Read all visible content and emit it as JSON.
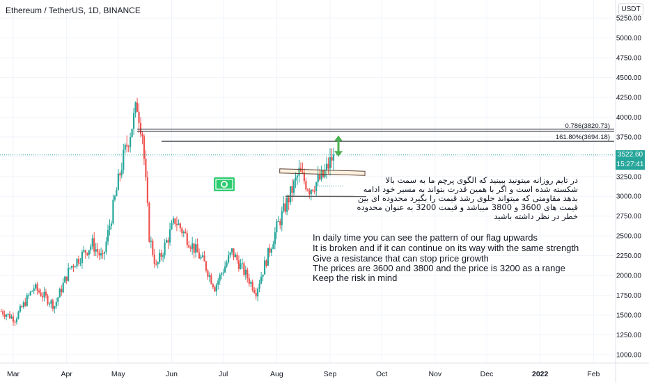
{
  "header": {
    "title": "Ethereum / TetherUS, 1D, BINANCE",
    "currency": "USDT"
  },
  "price_tags": {
    "price": "3522.60",
    "timer": "15:27:41"
  },
  "fib_labels": {
    "level_078": "0.786(3820.73)",
    "level_1618": "161.80%(3694.18)"
  },
  "annotation_fa": [
    "در تایم روزانه میتونید ببینید که الگوی پرچم ما به سمت بالا",
    "شکسته شده است و اگر با همین قدرت بتواند به مسیر خود ادامه",
    "بدهد مقاومتی که میتواند جلوی رشد قیمت را بگیرد محدوده ای بین",
    "قیمت های 3600 و 3800 میباشد و قیمت 3200 به عنوان محدوده",
    "خطر در نظر داشته باشید"
  ],
  "annotation_en": [
    "In daily time you can see the pattern of our flag upwards",
    "It is broken and if it can continue on its way with the same strength",
    "Give a resistance that can stop price growth",
    "The prices are 3600 and 3800 and the price is 3200 as a range",
    "Keep the risk in mind"
  ],
  "colors": {
    "up": "#26a69a",
    "down": "#ef5350",
    "grid": "#f0f3fa",
    "axis_text": "#131722",
    "money_icon": "#2ecc71",
    "arrow": "#4caf50"
  },
  "chart_data": {
    "type": "candlestick",
    "x_tick_labels": [
      "Mar",
      "Apr",
      "May",
      "Jun",
      "Jul",
      "Aug",
      "Sep",
      "Oct",
      "Nov",
      "Dec",
      "2022",
      "Feb"
    ],
    "y_tick_labels": [
      1000,
      1250,
      1500,
      1750,
      2000,
      2250,
      2500,
      2750,
      3000,
      3250,
      3500,
      3750,
      4000,
      4250,
      4500,
      4750,
      5000,
      5250
    ],
    "ylim": [
      900,
      5400
    ],
    "last_price": 3522.6,
    "price_path": [
      [
        "2021-02-22",
        1550
      ],
      [
        "2021-03-02",
        1450
      ],
      [
        "2021-03-13",
        1850
      ],
      [
        "2021-03-25",
        1620
      ],
      [
        "2021-04-03",
        2100
      ],
      [
        "2021-04-16",
        2400
      ],
      [
        "2021-04-22",
        2200
      ],
      [
        "2021-05-03",
        3400
      ],
      [
        "2021-05-12",
        4150
      ],
      [
        "2021-05-15",
        3800
      ],
      [
        "2021-05-19",
        2500
      ],
      [
        "2021-05-23",
        2100
      ],
      [
        "2021-06-03",
        2700
      ],
      [
        "2021-06-20",
        2150
      ],
      [
        "2021-06-26",
        1850
      ],
      [
        "2021-07-06",
        2300
      ],
      [
        "2021-07-20",
        1800
      ],
      [
        "2021-08-01",
        2600
      ],
      [
        "2021-08-14",
        3300
      ],
      [
        "2021-08-20",
        3100
      ],
      [
        "2021-08-28",
        3250
      ],
      [
        "2021-09-03",
        3522.6
      ]
    ],
    "horizontal_levels": [
      {
        "label": "0.786(3820.73)",
        "value": 3820.73
      },
      {
        "label": "161.80%(3694.18)",
        "value": 3694.18
      }
    ],
    "flag_channel": {
      "upper": [
        [
          "2021-08-06",
          3320
        ],
        [
          "2021-09-18",
          3290
        ]
      ],
      "lower": [
        [
          "2021-08-06",
          3000
        ],
        [
          "2021-09-18",
          2980
        ]
      ]
    }
  }
}
